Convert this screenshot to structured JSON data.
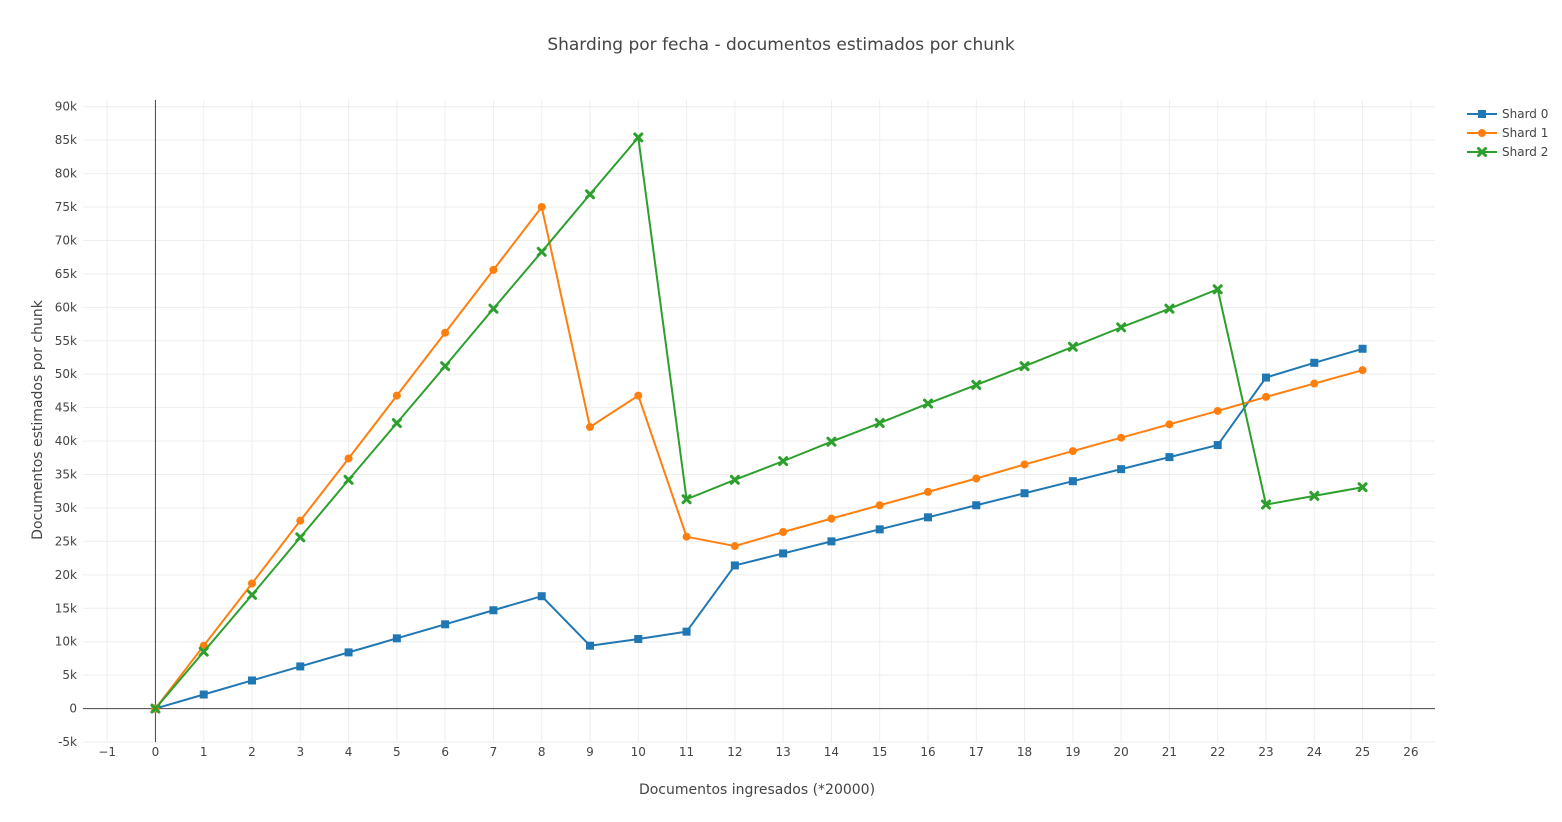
{
  "chart_data": {
    "type": "line",
    "title": "Sharding por fecha - documentos estimados por chunk",
    "xlabel": "Documentos ingresados (*20000)",
    "ylabel": "Documentos estimados por chunk",
    "xlim": [
      -1.5,
      26.5
    ],
    "ylim": [
      -5000,
      91000
    ],
    "xticks": [
      -1,
      0,
      1,
      2,
      3,
      4,
      5,
      6,
      7,
      8,
      9,
      10,
      11,
      12,
      13,
      14,
      15,
      16,
      17,
      18,
      19,
      20,
      21,
      22,
      23,
      24,
      25,
      26
    ],
    "xtick_labels": [
      "−1",
      "0",
      "1",
      "2",
      "3",
      "4",
      "5",
      "6",
      "7",
      "8",
      "9",
      "10",
      "11",
      "12",
      "13",
      "14",
      "15",
      "16",
      "17",
      "18",
      "19",
      "20",
      "21",
      "22",
      "23",
      "24",
      "25",
      "26"
    ],
    "yticks": [
      -5000,
      0,
      5000,
      10000,
      15000,
      20000,
      25000,
      30000,
      35000,
      40000,
      45000,
      50000,
      55000,
      60000,
      65000,
      70000,
      75000,
      80000,
      85000,
      90000
    ],
    "ytick_labels": [
      "-5k",
      "0",
      "5k",
      "10k",
      "15k",
      "20k",
      "25k",
      "30k",
      "35k",
      "40k",
      "45k",
      "50k",
      "55k",
      "60k",
      "65k",
      "70k",
      "75k",
      "80k",
      "85k",
      "90k"
    ],
    "grid": true,
    "legend_position": "top-right",
    "x": [
      0,
      1,
      2,
      3,
      4,
      5,
      6,
      7,
      8,
      9,
      10,
      11,
      12,
      13,
      14,
      15,
      16,
      17,
      18,
      19,
      20,
      21,
      22,
      23,
      24,
      25
    ],
    "series": [
      {
        "name": "Shard 0",
        "color": "#1f77b4",
        "marker": "square",
        "values": [
          0,
          2100,
          4200,
          6300,
          8400,
          10500,
          12600,
          14700,
          16800,
          9400,
          10400,
          11500,
          21400,
          23200,
          25000,
          26800,
          28600,
          30400,
          32200,
          34000,
          35800,
          37600,
          39400,
          49500,
          51700,
          53800
        ]
      },
      {
        "name": "Shard 1",
        "color": "#ff7f0e",
        "marker": "circle",
        "values": [
          0,
          9400,
          18700,
          28100,
          37400,
          46800,
          56200,
          65600,
          75000,
          42100,
          46800,
          25700,
          24300,
          26400,
          28400,
          30400,
          32400,
          34400,
          36500,
          38500,
          40500,
          42500,
          44500,
          46600,
          48600,
          50600
        ]
      },
      {
        "name": "Shard 2",
        "color": "#2ca02c",
        "marker": "x",
        "values": [
          0,
          8500,
          17000,
          25600,
          34200,
          42700,
          51200,
          59800,
          68300,
          76900,
          85400,
          31300,
          34200,
          37000,
          39900,
          42700,
          45600,
          48400,
          51200,
          54100,
          57000,
          59800,
          62700,
          30500,
          31800,
          33100
        ]
      }
    ]
  }
}
